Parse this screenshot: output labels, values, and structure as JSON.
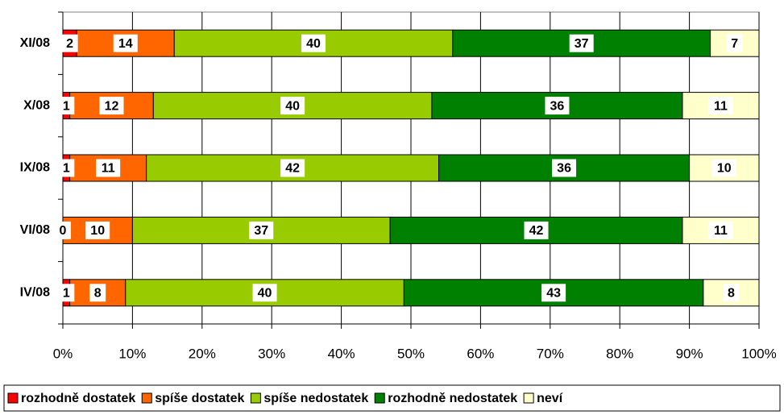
{
  "chart_data": {
    "type": "stacked-bar-horizontal",
    "categories": [
      "XI/08",
      "X/08",
      "IX/08",
      "VI/08",
      "IV/08"
    ],
    "series": [
      {
        "name": "rozhodně dostatek",
        "color": "#ff0000",
        "values": [
          2,
          1,
          1,
          0,
          1
        ]
      },
      {
        "name": "spíše dostatek",
        "color": "#ff6600",
        "values": [
          14,
          12,
          11,
          10,
          8
        ]
      },
      {
        "name": "spíše nedostatek",
        "color": "#99cc00",
        "values": [
          40,
          40,
          42,
          37,
          40
        ]
      },
      {
        "name": "rozhodně nedostatek",
        "color": "#008000",
        "values": [
          37,
          36,
          36,
          42,
          43
        ]
      },
      {
        "name": "neví",
        "color": "#ffffcc",
        "values": [
          7,
          11,
          10,
          11,
          8
        ]
      }
    ],
    "xlim": [
      0,
      100
    ],
    "xticks": [
      {
        "value": 0,
        "label": "0%"
      },
      {
        "value": 10,
        "label": "10%"
      },
      {
        "value": 20,
        "label": "20%"
      },
      {
        "value": 30,
        "label": "30%"
      },
      {
        "value": 40,
        "label": "40%"
      },
      {
        "value": 50,
        "label": "50%"
      },
      {
        "value": 60,
        "label": "60%"
      },
      {
        "value": 70,
        "label": "70%"
      },
      {
        "value": 80,
        "label": "80%"
      },
      {
        "value": 90,
        "label": "90%"
      },
      {
        "value": 100,
        "label": "100%"
      }
    ],
    "grid": true,
    "legend": "bottom"
  }
}
